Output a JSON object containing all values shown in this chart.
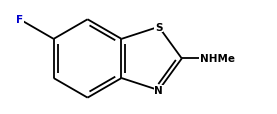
{
  "background_color": "#ffffff",
  "bond_color": "#000000",
  "label_color_F": "#0000cd",
  "label_color_S": "#000000",
  "label_color_N": "#000000",
  "label_color_NHMe": "#000000",
  "font_size_atom": 7.5,
  "font_size_NHMe": 7.5,
  "line_width": 1.3,
  "figsize": [
    2.77,
    1.15
  ],
  "dpi": 100,
  "xlim": [
    -2.2,
    3.8
  ],
  "ylim": [
    -1.4,
    1.5
  ]
}
